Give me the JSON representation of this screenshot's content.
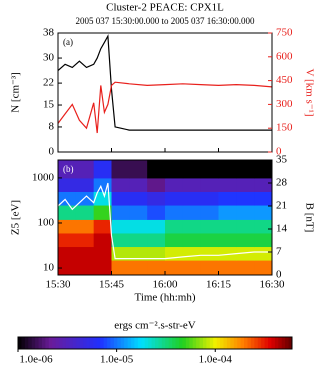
{
  "chart_data": [
    {
      "type": "line",
      "title": "Cluster-2 PEACE: CPX1L",
      "subtitle": "2005 037 15:30:00.000 to 2005 037 16:30:00.000",
      "panel_label": "(a)",
      "x": [
        "15:30",
        "15:32",
        "15:34",
        "15:36",
        "15:38",
        "15:40",
        "15:41",
        "15:42",
        "15:43",
        "15:44",
        "15:45",
        "15:46",
        "15:50",
        "15:55",
        "16:00",
        "16:05",
        "16:10",
        "16:15",
        "16:20",
        "16:25",
        "16:30"
      ],
      "xlim": [
        "15:30",
        "16:30"
      ],
      "ylabel": "N [cm⁻³]",
      "ylim": [
        0,
        38
      ],
      "yticks": [
        0,
        8,
        15,
        22,
        30,
        38
      ],
      "y2label": "V [km s⁻¹]",
      "y2lim": [
        0,
        750
      ],
      "y2ticks": [
        0,
        150,
        300,
        450,
        600,
        750
      ],
      "y2color": "#e8201c",
      "series": [
        {
          "color": "#000000",
          "values": [
            26,
            28,
            27,
            29,
            27,
            28,
            30,
            33,
            35,
            37,
            20,
            8,
            7,
            7,
            7,
            7,
            7,
            7,
            7,
            7,
            7
          ]
        },
        {
          "color": "#e8201c",
          "axis": "y2",
          "values": [
            180,
            240,
            300,
            200,
            150,
            310,
            120,
            420,
            250,
            300,
            420,
            440,
            430,
            420,
            425,
            430,
            425,
            420,
            425,
            420,
            410
          ]
        }
      ]
    },
    {
      "type": "spectrogram",
      "panel_label": "(b)",
      "time_bins": [
        "15:30",
        "15:35",
        "15:40",
        "15:45",
        "15:50",
        "15:55",
        "16:00",
        "16:05",
        "16:10",
        "16:15",
        "16:20",
        "16:25",
        "16:30"
      ],
      "energy_bins": [
        7,
        15,
        30,
        60,
        120,
        250,
        500,
        1000,
        2500
      ],
      "values": [
        [
          0.0004,
          0.0004,
          0.0004,
          0.0002,
          0.0002,
          0.0002,
          0.0002,
          0.0002,
          0.0002,
          0.0002,
          0.0002,
          0.0002
        ],
        [
          0.0004,
          0.0004,
          0.0004,
          8e-05,
          8e-05,
          8e-05,
          9e-05,
          9e-05,
          9e-05,
          9e-05,
          9e-05,
          9e-05
        ],
        [
          0.0003,
          0.0003,
          0.0004,
          3e-05,
          3e-05,
          3e-05,
          4e-05,
          4e-05,
          4e-05,
          4e-05,
          4e-05,
          4e-05
        ],
        [
          0.0002,
          0.0002,
          0.0003,
          2e-05,
          2e-05,
          2e-05,
          3e-05,
          3e-05,
          3e-05,
          3e-05,
          3e-05,
          3e-05
        ],
        [
          3e-05,
          3e-05,
          5e-05,
          1e-05,
          1e-05,
          8e-06,
          1e-05,
          1e-05,
          1e-05,
          1.2e-05,
          1.2e-05,
          1.2e-05
        ],
        [
          1e-05,
          1e-05,
          2e-05,
          6e-06,
          6e-06,
          5e-06,
          6e-06,
          6e-06,
          6e-06,
          7e-06,
          7e-06,
          7e-06
        ],
        [
          5e-06,
          5e-06,
          1e-05,
          3e-06,
          3e-06,
          2e-06,
          3e-06,
          3e-06,
          3e-06,
          3e-06,
          3e-06,
          3e-06
        ],
        [
          3e-06,
          3e-06,
          6e-06,
          1.5e-06,
          1.5e-06,
          1e-06,
          1e-06,
          1e-06,
          1e-06,
          1e-06,
          1e-06,
          1e-06
        ]
      ],
      "log_y": true,
      "ylabel": "Z5 [eV]",
      "ylim": [
        7,
        2500
      ],
      "yticks": [
        10,
        100,
        1000
      ],
      "y2label": "B [nT]",
      "y2lim": [
        0,
        35
      ],
      "y2ticks": [
        0,
        7,
        14,
        21,
        28,
        35
      ],
      "xlabel": "Time (hh:mh)",
      "xlim": [
        "15:30",
        "16:30"
      ],
      "xticks": [
        "15:30",
        "15:45",
        "16:00",
        "16:15",
        "16:30"
      ],
      "x": [
        "15:30",
        "15:32",
        "15:34",
        "15:36",
        "15:38",
        "15:40",
        "15:41",
        "15:42",
        "15:43",
        "15:44",
        "15:45",
        "15:46",
        "15:50",
        "15:55",
        "16:00",
        "16:05",
        "16:10",
        "16:15",
        "16:20",
        "16:25",
        "16:30"
      ],
      "series": [
        {
          "color": "#ffffff",
          "axis": "y2",
          "values": [
            21,
            23,
            20,
            22,
            24,
            22,
            25,
            27,
            24,
            28,
            12,
            5,
            5,
            5,
            5,
            5.5,
            6,
            6,
            6.5,
            7,
            7
          ]
        }
      ],
      "colorbar": {
        "label": "ergs cm⁻².s-str-eV",
        "log": true,
        "lim": [
          1e-06,
          0.0006
        ],
        "ticks": [
          {
            "value": 1e-06,
            "label": "1.0e-06"
          },
          {
            "value": 1e-05,
            "label": "1.0e-05"
          },
          {
            "value": 0.0001,
            "label": "1.0e-04"
          }
        ]
      }
    }
  ]
}
